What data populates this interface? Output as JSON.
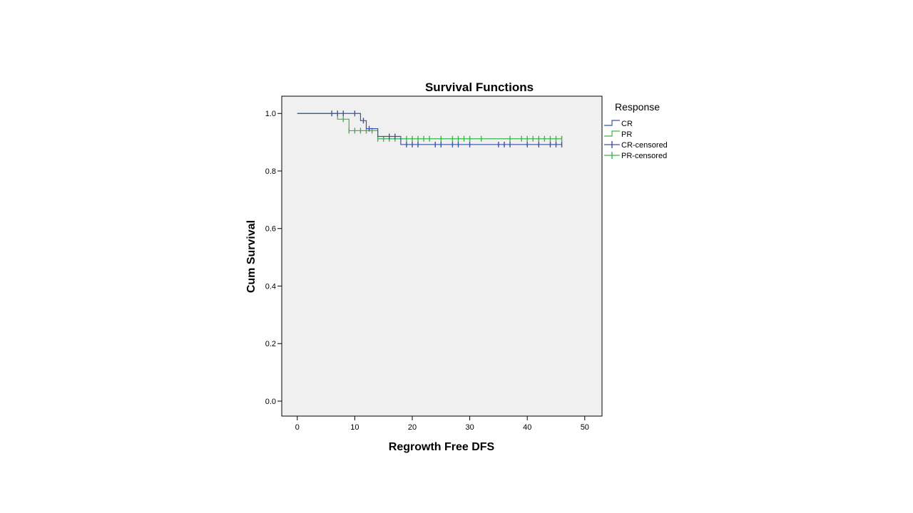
{
  "chart_data": {
    "type": "line",
    "subtype": "kaplan-meier-step",
    "title": "Survival Functions",
    "xlabel": "Regrowth Free DFS",
    "ylabel": "Cum Survival",
    "xlim": [
      -2.7,
      53
    ],
    "ylim": [
      -0.052,
      1.06
    ],
    "xticks": [
      0,
      10,
      20,
      30,
      40,
      50
    ],
    "yticks": [
      0.0,
      0.2,
      0.4,
      0.6,
      0.8,
      1.0
    ],
    "xtick_labels": [
      "0",
      "10",
      "20",
      "30",
      "40",
      "50"
    ],
    "ytick_labels": [
      "0.0",
      "0.2",
      "0.4",
      "0.6",
      "0.8",
      "1.0"
    ],
    "grid": false,
    "plot_background": "#f0f0f0",
    "legend": {
      "title": "Response",
      "placement": "right",
      "entries": [
        {
          "label": "CR",
          "kind": "step",
          "color": "#3a53a4"
        },
        {
          "label": "PR",
          "kind": "step",
          "color": "#3cb44b"
        },
        {
          "label": "CR-censored",
          "kind": "censor",
          "color": "#3a53a4"
        },
        {
          "label": "PR-censored",
          "kind": "censor",
          "color": "#3cb44b"
        }
      ]
    },
    "series": [
      {
        "name": "CR",
        "color": "#3a53a4",
        "steps": [
          [
            0,
            1.0
          ],
          [
            11,
            0.975
          ],
          [
            12,
            0.947
          ],
          [
            14,
            0.92
          ],
          [
            18,
            0.892
          ]
        ],
        "end_x": 46,
        "censored": [
          [
            6,
            1.0
          ],
          [
            7,
            1.0
          ],
          [
            8,
            1.0
          ],
          [
            10,
            1.0
          ],
          [
            11.5,
            0.975
          ],
          [
            12.5,
            0.947
          ],
          [
            16,
            0.92
          ],
          [
            17,
            0.92
          ],
          [
            19,
            0.892
          ],
          [
            20,
            0.892
          ],
          [
            21,
            0.892
          ],
          [
            24,
            0.892
          ],
          [
            25,
            0.892
          ],
          [
            27,
            0.892
          ],
          [
            28,
            0.892
          ],
          [
            30,
            0.892
          ],
          [
            35,
            0.892
          ],
          [
            36,
            0.892
          ],
          [
            37,
            0.892
          ],
          [
            40,
            0.892
          ],
          [
            42,
            0.892
          ],
          [
            44,
            0.892
          ],
          [
            45,
            0.892
          ],
          [
            46,
            0.892
          ]
        ]
      },
      {
        "name": "PR",
        "color": "#3cb44b",
        "steps": [
          [
            0,
            1.0
          ],
          [
            7,
            0.98
          ],
          [
            9,
            0.94
          ],
          [
            14,
            0.912
          ]
        ],
        "end_x": 46,
        "censored": [
          [
            8,
            0.98
          ],
          [
            9,
            0.94
          ],
          [
            10,
            0.94
          ],
          [
            11,
            0.94
          ],
          [
            12,
            0.94
          ],
          [
            13,
            0.94
          ],
          [
            14,
            0.912
          ],
          [
            15,
            0.912
          ],
          [
            16,
            0.912
          ],
          [
            17,
            0.912
          ],
          [
            19,
            0.912
          ],
          [
            20,
            0.912
          ],
          [
            21,
            0.912
          ],
          [
            22,
            0.912
          ],
          [
            23,
            0.912
          ],
          [
            25,
            0.912
          ],
          [
            27,
            0.912
          ],
          [
            28,
            0.912
          ],
          [
            29,
            0.912
          ],
          [
            30,
            0.912
          ],
          [
            32,
            0.912
          ],
          [
            37,
            0.912
          ],
          [
            39,
            0.912
          ],
          [
            40,
            0.912
          ],
          [
            41,
            0.912
          ],
          [
            42,
            0.912
          ],
          [
            43,
            0.912
          ],
          [
            44,
            0.912
          ],
          [
            45,
            0.912
          ],
          [
            46,
            0.912
          ]
        ]
      }
    ]
  }
}
